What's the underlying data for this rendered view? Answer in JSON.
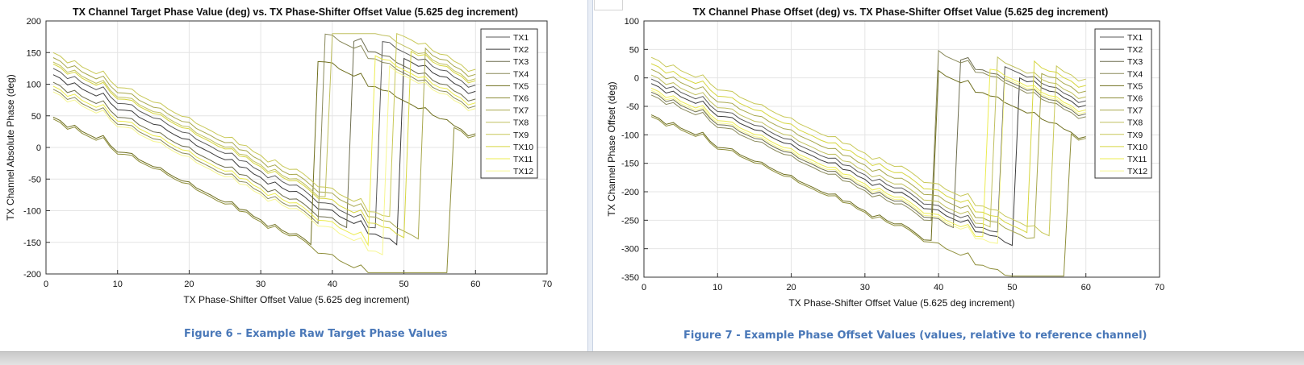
{
  "captions": {
    "left": "Figure 6 – Example Raw Target Phase Values",
    "right": "Figure 7 - Example Phase Offset Values (values, relative to reference channel)"
  },
  "colors": {
    "TX1": "#5a5a5a",
    "TX2": "#3c3c3c",
    "TX3": "#6e6e50",
    "TX4": "#8a8a5c",
    "TX5": "#6f6f1f",
    "TX6": "#8e8e3a",
    "TX7": "#a8a84e",
    "TX8": "#c0c060",
    "TX9": "#c8c858",
    "TX10": "#d6d640",
    "TX11": "#ecec50",
    "TX12": "#f6f690"
  },
  "chart_data": [
    {
      "type": "line",
      "title": "TX Channel Target Phase Value (deg) vs. TX Phase-Shifter Offset Value (5.625 deg increment)",
      "xlabel": "TX Phase-Shifter Offset Value (5.625 deg increment)",
      "ylabel": "TX Channel Absolute Phase (deg)",
      "xlim": [
        0,
        70
      ],
      "ylim": [
        -200,
        200
      ],
      "xticks": [
        0,
        10,
        20,
        30,
        40,
        50,
        60,
        70
      ],
      "yticks": [
        -200,
        -150,
        -100,
        -50,
        0,
        50,
        100,
        150,
        200
      ],
      "grid": true,
      "legend_position": "top-right",
      "x_range": [
        1,
        60
      ],
      "series": [
        {
          "name": "TX1",
          "start": 125,
          "wrap_x": 46
        },
        {
          "name": "TX2",
          "start": 115,
          "wrap_x": 49
        },
        {
          "name": "TX3",
          "start": 103,
          "wrap_x": 42
        },
        {
          "name": "TX4",
          "start": 92,
          "wrap_x": 38
        },
        {
          "name": "TX5",
          "start": 48,
          "wrap_x": 37
        },
        {
          "name": "TX6",
          "start": 45,
          "wrap_x": 56
        },
        {
          "name": "TX7",
          "start": 142,
          "wrap_x": 52
        },
        {
          "name": "TX8",
          "start": 135,
          "wrap_x": 39
        },
        {
          "name": "TX9",
          "start": 150,
          "wrap_x": 48
        },
        {
          "name": "TX10",
          "start": 132,
          "wrap_x": 50
        },
        {
          "name": "TX11",
          "start": 97,
          "wrap_x": 45
        },
        {
          "name": "TX12",
          "start": 88,
          "wrap_x": 47
        }
      ]
    },
    {
      "type": "line",
      "title": "TX Channel Phase Offset (deg) vs. TX Phase-Shifter Offset Value (5.625 deg increment)",
      "xlabel": "TX Phase-Shifter Offset Value (5.625 deg increment)",
      "ylabel": "TX Channel Phase Offset (deg)",
      "xlim": [
        0,
        70
      ],
      "ylim": [
        -350,
        100
      ],
      "xticks": [
        0,
        10,
        20,
        30,
        40,
        50,
        60,
        70
      ],
      "yticks": [
        -350,
        -300,
        -250,
        -200,
        -150,
        -100,
        -50,
        0,
        50,
        100
      ],
      "grid": true,
      "legend_position": "top-right",
      "x_range": [
        1,
        60
      ],
      "series": [
        {
          "name": "TX1",
          "start": -2,
          "wrap_x": 48
        },
        {
          "name": "TX2",
          "start": -10,
          "wrap_x": 50
        },
        {
          "name": "TX3",
          "start": -25,
          "wrap_x": 42
        },
        {
          "name": "TX4",
          "start": -30,
          "wrap_x": 39
        },
        {
          "name": "TX5",
          "start": -65,
          "wrap_x": 39
        },
        {
          "name": "TX6",
          "start": -68,
          "wrap_x": 57
        },
        {
          "name": "TX7",
          "start": 15,
          "wrap_x": 53
        },
        {
          "name": "TX8",
          "start": 5,
          "wrap_x": 47
        },
        {
          "name": "TX9",
          "start": 36,
          "wrap_x": 55
        },
        {
          "name": "TX10",
          "start": 25,
          "wrap_x": 52
        },
        {
          "name": "TX11",
          "start": -18,
          "wrap_x": 46
        },
        {
          "name": "TX12",
          "start": -22,
          "wrap_x": 48
        }
      ]
    }
  ]
}
